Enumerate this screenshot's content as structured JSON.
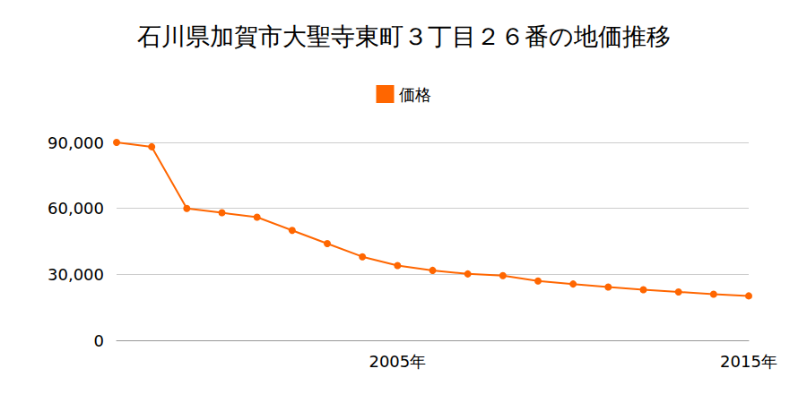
{
  "chart_data": {
    "type": "line",
    "title": "石川県加賀市大聖寺東町３丁目２６番の地価推移",
    "categories": [
      null,
      null,
      null,
      null,
      null,
      null,
      null,
      null,
      "2005年",
      null,
      null,
      null,
      null,
      null,
      null,
      null,
      null,
      null,
      "2015年"
    ],
    "series": [
      {
        "name": "価格",
        "color": "#ff6600",
        "values": [
          90000,
          88000,
          60000,
          58000,
          56000,
          50000,
          44000,
          38000,
          34000,
          31800,
          30200,
          29400,
          27000,
          25600,
          24200,
          23000,
          22000,
          21000,
          20200
        ]
      }
    ],
    "ylim": [
      0,
      90000
    ],
    "yticks": [
      0,
      {
        "value": 30000,
        "label": "30,000"
      },
      {
        "value": 60000,
        "label": "60,000"
      },
      {
        "value": 90000,
        "label": "90,000"
      }
    ],
    "grid": true,
    "legend": "top",
    "marker": "circle"
  }
}
